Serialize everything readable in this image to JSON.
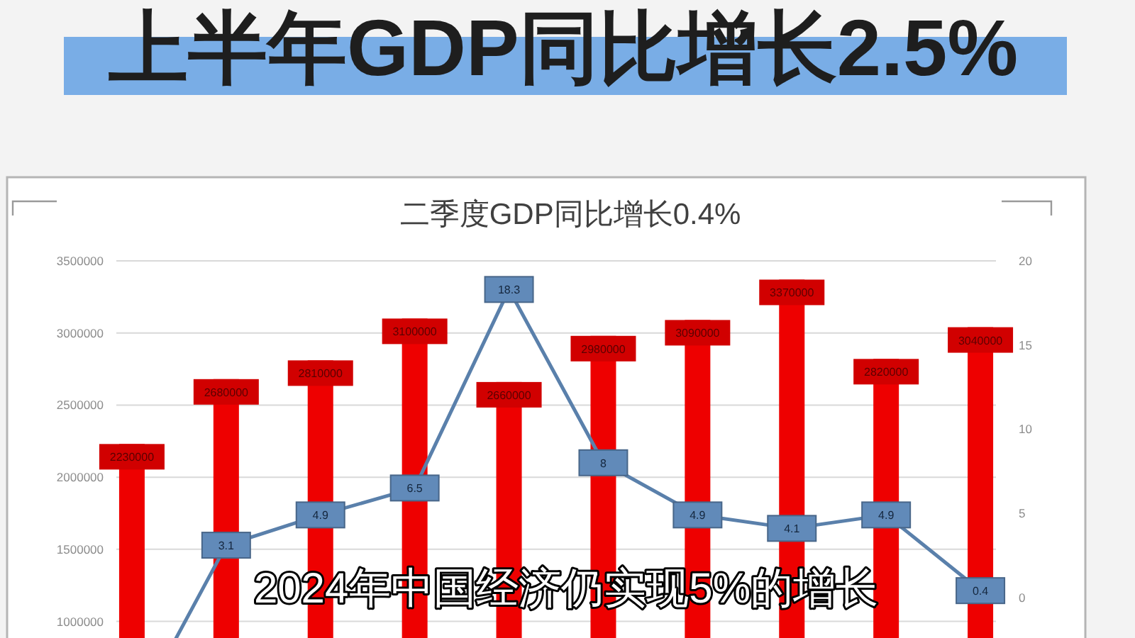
{
  "chart_data": {
    "type": "bar",
    "title": "上半年GDP同比增长2.5%",
    "subtitle": "二季度GDP同比增长0.4%",
    "annotations": [
      "2024年中国经济仍实现5%的增长"
    ],
    "categories": [
      null,
      null,
      null,
      null,
      null,
      null,
      null,
      null,
      null,
      null
    ],
    "series": [
      {
        "color": "#ee0000",
        "values": [
          2230000,
          2680000,
          2810000,
          3100000,
          2660000,
          2980000,
          3090000,
          3370000,
          2820000,
          3040000
        ],
        "value_labels": [
          "2230000",
          "2680000",
          "2810000",
          "3100000",
          "2660000",
          "2980000",
          "3090000",
          "3370000",
          "2820000",
          "3040000"
        ]
      },
      {
        "type": "line",
        "axis": "y2",
        "color": "#5a80ab",
        "marker": "square",
        "values": [
          -7.3,
          3.1,
          4.9,
          6.5,
          18.3,
          8,
          4.9,
          4.1,
          4.9,
          0.4
        ],
        "value_labels": [
          null,
          "3.1",
          "4.9",
          "6.5",
          "18.3",
          "8",
          "4.9",
          "4.1",
          "4.9",
          "0.4"
        ]
      }
    ],
    "ylim": [
      0,
      3500000
    ],
    "yticks": [
      1000000,
      1500000,
      2000000,
      2500000,
      3000000,
      3500000
    ],
    "y2lim": [
      -10,
      20
    ],
    "y2ticks": [
      0,
      5,
      10,
      15,
      20
    ],
    "grid": "y"
  }
}
